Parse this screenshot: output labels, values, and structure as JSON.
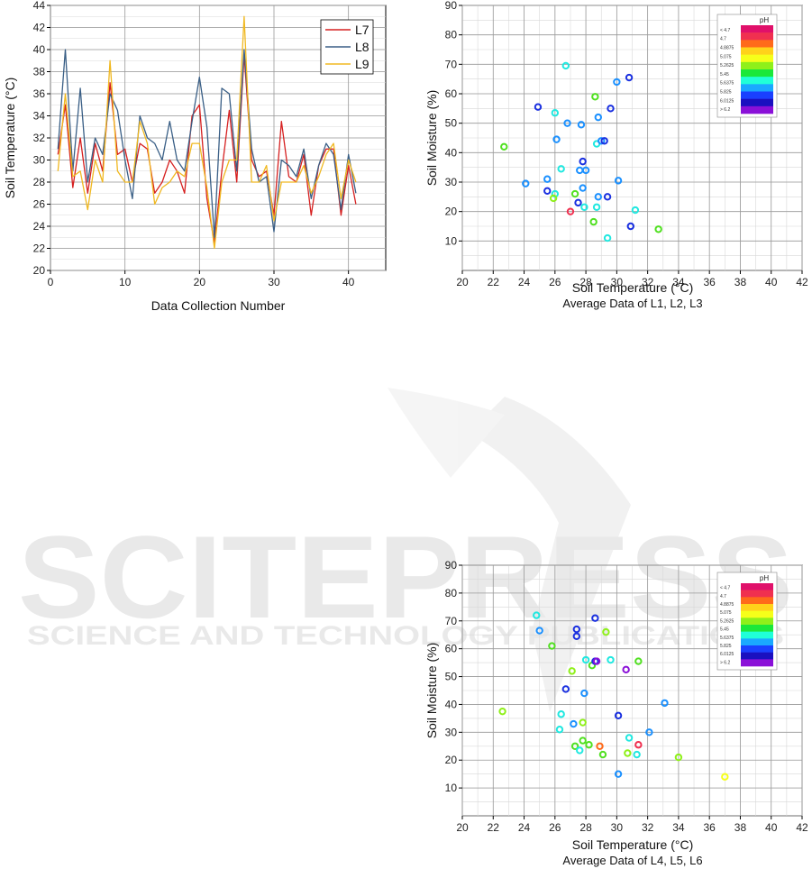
{
  "watermark": {
    "line1": "SCITEPRESS",
    "line2": "SCIENCE AND TECHNOLOGY PUBLICATIONS"
  },
  "chart_data": [
    {
      "type": "line",
      "title": "",
      "xlabel": "Data Collection Number",
      "ylabel": "Soil Temperature (°C)",
      "xlim": [
        0,
        45
      ],
      "ylim": [
        20,
        44
      ],
      "xticks": [
        0,
        10,
        20,
        30,
        40
      ],
      "yticks": [
        20,
        22,
        24,
        26,
        28,
        30,
        32,
        34,
        36,
        38,
        40,
        42,
        44
      ],
      "grid": true,
      "legend": "top-right",
      "x": [
        1,
        2,
        3,
        4,
        5,
        6,
        7,
        8,
        9,
        10,
        11,
        12,
        13,
        14,
        15,
        16,
        17,
        18,
        19,
        20,
        21,
        22,
        23,
        24,
        25,
        26,
        27,
        28,
        29,
        30,
        31,
        32,
        33,
        34,
        35,
        36,
        37,
        38,
        39,
        40,
        41
      ],
      "series": [
        {
          "name": "L7",
          "color": "#d62020",
          "values": [
            30.5,
            35.0,
            27.5,
            32.0,
            27.0,
            31.5,
            29.0,
            37.0,
            30.5,
            31.0,
            28.0,
            31.5,
            31.0,
            27.0,
            28.0,
            30.0,
            29.0,
            27.0,
            34.0,
            35.0,
            26.5,
            22.5,
            29.0,
            34.5,
            28.0,
            39.5,
            30.0,
            28.5,
            29.0,
            25.0,
            33.5,
            28.5,
            28.0,
            30.5,
            25.0,
            29.5,
            31.0,
            31.0,
            25.0,
            29.5,
            26.0
          ]
        },
        {
          "name": "L8",
          "color": "#3a5f86",
          "values": [
            31.0,
            40.0,
            29.0,
            36.5,
            28.0,
            32.0,
            30.5,
            36.0,
            34.5,
            30.0,
            26.5,
            34.0,
            32.0,
            31.5,
            30.0,
            33.5,
            30.0,
            29.0,
            33.5,
            37.5,
            33.0,
            23.0,
            36.5,
            36.0,
            29.0,
            40.0,
            31.0,
            28.0,
            28.5,
            23.5,
            30.0,
            29.5,
            28.5,
            31.0,
            26.5,
            29.5,
            31.5,
            30.5,
            25.5,
            30.5,
            27.0
          ]
        },
        {
          "name": "L9",
          "color": "#f0b820",
          "values": [
            29.0,
            36.0,
            28.5,
            29.0,
            25.5,
            30.0,
            28.0,
            39.0,
            29.0,
            28.0,
            28.0,
            33.5,
            31.5,
            26.0,
            27.5,
            28.0,
            29.0,
            28.5,
            31.5,
            31.5,
            27.5,
            22.0,
            28.0,
            30.0,
            30.0,
            43.0,
            28.0,
            28.0,
            29.5,
            24.5,
            28.0,
            28.0,
            28.0,
            29.5,
            27.0,
            28.5,
            30.5,
            31.5,
            26.5,
            30.0,
            28.0
          ]
        }
      ]
    },
    {
      "type": "scatter",
      "title": "",
      "xlabel": "Soil Temperature (°C)",
      "ylabel": "Soil Moisture (%)",
      "caption": "Average Data of L1, L2, L3",
      "xlim": [
        20,
        42
      ],
      "ylim": [
        0,
        90
      ],
      "xticks": [
        20,
        22,
        24,
        26,
        28,
        30,
        32,
        34,
        36,
        38,
        40,
        42
      ],
      "yticks": [
        10,
        20,
        30,
        40,
        50,
        60,
        70,
        80,
        90
      ],
      "grid": true,
      "legend": "top-right",
      "colorbar": {
        "title": "pH",
        "labels": [
          "< 4.7",
          "4.7",
          "4.8875",
          "5.075",
          "5.2625",
          "5.45",
          "5.6375",
          "5.825",
          "6.0125",
          "> 6.2"
        ],
        "colors": [
          "#e0106a",
          "#f03050",
          "#ff6a1a",
          "#ffd21a",
          "#f6ff1a",
          "#8ff01a",
          "#1ae83a",
          "#20ffd8",
          "#1aa8ff",
          "#1a40ff",
          "#1a10c0",
          "#8a10d8"
        ]
      },
      "points": [
        {
          "x": 26.7,
          "y": 69.5,
          "c": "#20e8e0"
        },
        {
          "x": 30.0,
          "y": 64.0,
          "c": "#1a90ff"
        },
        {
          "x": 30.8,
          "y": 65.5,
          "c": "#1a30e0"
        },
        {
          "x": 28.6,
          "y": 59.0,
          "c": "#50e020"
        },
        {
          "x": 26.0,
          "y": 53.5,
          "c": "#20e8e0"
        },
        {
          "x": 28.8,
          "y": 52.0,
          "c": "#1a90ff"
        },
        {
          "x": 24.9,
          "y": 55.5,
          "c": "#1a30e0"
        },
        {
          "x": 26.8,
          "y": 50.0,
          "c": "#1a90ff"
        },
        {
          "x": 27.7,
          "y": 49.5,
          "c": "#1a90ff"
        },
        {
          "x": 29.6,
          "y": 55.0,
          "c": "#1a30e0"
        },
        {
          "x": 22.7,
          "y": 42.0,
          "c": "#50e020"
        },
        {
          "x": 26.1,
          "y": 44.5,
          "c": "#1a90ff"
        },
        {
          "x": 28.7,
          "y": 43.0,
          "c": "#20e8e0"
        },
        {
          "x": 29.0,
          "y": 44.0,
          "c": "#1a90ff"
        },
        {
          "x": 29.2,
          "y": 44.0,
          "c": "#1a30e0"
        },
        {
          "x": 27.8,
          "y": 37.0,
          "c": "#1a30e0"
        },
        {
          "x": 26.4,
          "y": 34.5,
          "c": "#20e8e0"
        },
        {
          "x": 27.6,
          "y": 34.0,
          "c": "#1a90ff"
        },
        {
          "x": 28.0,
          "y": 34.0,
          "c": "#1a90ff"
        },
        {
          "x": 24.1,
          "y": 29.5,
          "c": "#1a90ff"
        },
        {
          "x": 25.5,
          "y": 31.0,
          "c": "#1a90ff"
        },
        {
          "x": 30.1,
          "y": 30.5,
          "c": "#1a90ff"
        },
        {
          "x": 25.5,
          "y": 27.0,
          "c": "#1a30e0"
        },
        {
          "x": 26.0,
          "y": 26.0,
          "c": "#20e8e0"
        },
        {
          "x": 27.3,
          "y": 26.0,
          "c": "#50e020"
        },
        {
          "x": 27.8,
          "y": 28.0,
          "c": "#1a90ff"
        },
        {
          "x": 25.9,
          "y": 24.5,
          "c": "#8ff01a"
        },
        {
          "x": 28.8,
          "y": 25.0,
          "c": "#1a90ff"
        },
        {
          "x": 29.4,
          "y": 25.0,
          "c": "#1a30e0"
        },
        {
          "x": 27.5,
          "y": 23.0,
          "c": "#1a30e0"
        },
        {
          "x": 27.0,
          "y": 20.0,
          "c": "#f03050"
        },
        {
          "x": 27.9,
          "y": 21.5,
          "c": "#20e8e0"
        },
        {
          "x": 28.7,
          "y": 21.5,
          "c": "#20e8e0"
        },
        {
          "x": 31.2,
          "y": 20.5,
          "c": "#20e8e0"
        },
        {
          "x": 28.5,
          "y": 16.5,
          "c": "#50e020"
        },
        {
          "x": 29.4,
          "y": 11.0,
          "c": "#20e8e0"
        },
        {
          "x": 30.9,
          "y": 15.0,
          "c": "#1a30e0"
        },
        {
          "x": 32.7,
          "y": 14.0,
          "c": "#50e020"
        }
      ]
    },
    {
      "type": "scatter",
      "title": "",
      "xlabel": "Soil Temperature (°C)",
      "ylabel": "Soil Moisture (%)",
      "caption": "Average Data of L4, L5, L6",
      "xlim": [
        20,
        42
      ],
      "ylim": [
        0,
        90
      ],
      "xticks": [
        20,
        22,
        24,
        26,
        28,
        30,
        32,
        34,
        36,
        38,
        40,
        42
      ],
      "yticks": [
        10,
        20,
        30,
        40,
        50,
        60,
        70,
        80,
        90
      ],
      "grid": true,
      "legend": "top-right",
      "colorbar": {
        "title": "pH",
        "labels": [
          "< 4.7",
          "4.7",
          "4.8875",
          "5.075",
          "5.2625",
          "5.45",
          "5.6375",
          "5.825",
          "6.0125",
          "> 6.2"
        ],
        "colors": [
          "#e0106a",
          "#f03050",
          "#ff6a1a",
          "#ffd21a",
          "#f6ff1a",
          "#8ff01a",
          "#1ae83a",
          "#20ffd8",
          "#1aa8ff",
          "#1a40ff",
          "#1a10c0",
          "#8a10d8"
        ]
      },
      "points": [
        {
          "x": 24.8,
          "y": 72.0,
          "c": "#20e8e0"
        },
        {
          "x": 25.0,
          "y": 66.5,
          "c": "#1a90ff"
        },
        {
          "x": 27.4,
          "y": 67.0,
          "c": "#1a30e0"
        },
        {
          "x": 27.4,
          "y": 64.5,
          "c": "#1a30e0"
        },
        {
          "x": 28.6,
          "y": 71.0,
          "c": "#1a30e0"
        },
        {
          "x": 25.8,
          "y": 61.0,
          "c": "#50e020"
        },
        {
          "x": 29.3,
          "y": 66.0,
          "c": "#8ff01a"
        },
        {
          "x": 27.1,
          "y": 52.0,
          "c": "#8ff01a"
        },
        {
          "x": 28.0,
          "y": 56.0,
          "c": "#20e8e0"
        },
        {
          "x": 28.4,
          "y": 54.0,
          "c": "#50e020"
        },
        {
          "x": 28.6,
          "y": 55.5,
          "c": "#1a30e0"
        },
        {
          "x": 28.7,
          "y": 55.5,
          "c": "#8a10d8"
        },
        {
          "x": 29.6,
          "y": 56.0,
          "c": "#20e8e0"
        },
        {
          "x": 30.6,
          "y": 52.5,
          "c": "#8a10d8"
        },
        {
          "x": 31.4,
          "y": 55.5,
          "c": "#50e020"
        },
        {
          "x": 26.7,
          "y": 45.5,
          "c": "#1a30e0"
        },
        {
          "x": 27.9,
          "y": 44.0,
          "c": "#1a90ff"
        },
        {
          "x": 22.6,
          "y": 37.5,
          "c": "#8ff01a"
        },
        {
          "x": 26.4,
          "y": 36.5,
          "c": "#20e8e0"
        },
        {
          "x": 30.1,
          "y": 36.0,
          "c": "#1a30e0"
        },
        {
          "x": 33.1,
          "y": 40.5,
          "c": "#1a90ff"
        },
        {
          "x": 27.2,
          "y": 33.0,
          "c": "#1a90ff"
        },
        {
          "x": 27.8,
          "y": 33.5,
          "c": "#8ff01a"
        },
        {
          "x": 26.3,
          "y": 31.0,
          "c": "#20e8e0"
        },
        {
          "x": 32.1,
          "y": 30.0,
          "c": "#1a90ff"
        },
        {
          "x": 27.8,
          "y": 27.0,
          "c": "#50e020"
        },
        {
          "x": 30.8,
          "y": 28.0,
          "c": "#20e8e0"
        },
        {
          "x": 27.3,
          "y": 25.0,
          "c": "#50e020"
        },
        {
          "x": 28.2,
          "y": 25.5,
          "c": "#50e020"
        },
        {
          "x": 28.9,
          "y": 25.0,
          "c": "#ff6a1a"
        },
        {
          "x": 31.4,
          "y": 25.5,
          "c": "#f03050"
        },
        {
          "x": 27.6,
          "y": 23.5,
          "c": "#20e8e0"
        },
        {
          "x": 29.1,
          "y": 22.0,
          "c": "#50e020"
        },
        {
          "x": 30.7,
          "y": 22.5,
          "c": "#8ff01a"
        },
        {
          "x": 31.3,
          "y": 22.0,
          "c": "#20e8e0"
        },
        {
          "x": 34.0,
          "y": 21.0,
          "c": "#8ff01a"
        },
        {
          "x": 30.1,
          "y": 15.0,
          "c": "#1a90ff"
        },
        {
          "x": 37.0,
          "y": 14.0,
          "c": "#f6ff1a"
        }
      ]
    }
  ]
}
